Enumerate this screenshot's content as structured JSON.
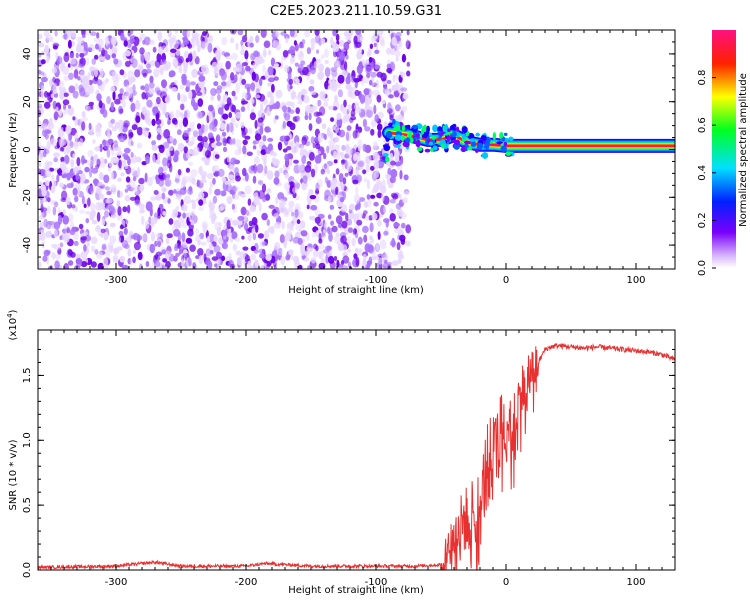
{
  "figure_title": "C2E5.2023.211.10.59.G31",
  "colors": {
    "spectro_low": "#e8d6ff",
    "spectro_mid": "#a770ff",
    "spectro_high": "#6a00e8",
    "snr_line": "#e83030"
  },
  "chart_data": [
    {
      "type": "heatmap",
      "title": "",
      "xlabel": "Height of straight line (km)",
      "ylabel": "Frequency (Hz)",
      "xlim": [
        -360,
        130
      ],
      "ylim": [
        -50,
        50
      ],
      "xticks": [
        -300,
        -200,
        -100,
        0,
        100
      ],
      "yticks": [
        -40,
        -20,
        0,
        20,
        40
      ],
      "colorbar": {
        "label": "Normalized spectral amplitude",
        "range": [
          0,
          1
        ],
        "ticks": [
          "0.0",
          "0.2",
          "0.4",
          "0.6",
          "0.8"
        ],
        "colormap": "rainbow (purple-blue-cyan-green-yellow-red-magenta)"
      },
      "features": [
        {
          "desc": "noise",
          "x_range": [
            -360,
            -75
          ],
          "y_range": [
            -50,
            50
          ],
          "amplitude": 0.05
        },
        {
          "desc": "signal trace",
          "points": [
            [
              -90,
              7
            ],
            [
              -75,
              6
            ],
            [
              -60,
              4
            ],
            [
              -50,
              4
            ],
            [
              -40,
              6
            ],
            [
              -30,
              3
            ],
            [
              -20,
              2
            ],
            [
              -10,
              2
            ],
            [
              0,
              1.5
            ],
            [
              50,
              1.5
            ],
            [
              130,
              1.5
            ]
          ],
          "amplitude": 0.9
        }
      ]
    },
    {
      "type": "line",
      "title": "",
      "xlabel": "Height of straight line (km)",
      "ylabel": "SNR (10 * v/v)",
      "y_multiplier": "(x10^4)",
      "xlim": [
        -360,
        130
      ],
      "ylim": [
        0,
        1.85
      ],
      "xticks": [
        -300,
        -200,
        -100,
        0,
        100
      ],
      "yticks": [
        "0.0",
        "0.5",
        "1.0",
        "1.5"
      ],
      "series": [
        {
          "x": [
            -360,
            -300,
            -270,
            -250,
            -200,
            -185,
            -150,
            -100,
            -70,
            -50,
            -45,
            -40,
            -35,
            -30,
            -25,
            -20,
            -15,
            -10,
            -5,
            0,
            5,
            10,
            15,
            20,
            25,
            30,
            35,
            40,
            50,
            60,
            70,
            80,
            90,
            100,
            110,
            120,
            130
          ],
          "y": [
            0.02,
            0.03,
            0.06,
            0.03,
            0.03,
            0.05,
            0.03,
            0.03,
            0.03,
            0.04,
            0.15,
            0.25,
            0.35,
            0.4,
            0.5,
            0.45,
            0.8,
            0.85,
            1.05,
            1.15,
            1.2,
            1.3,
            1.45,
            1.55,
            1.6,
            1.7,
            1.72,
            1.73,
            1.72,
            1.71,
            1.72,
            1.71,
            1.7,
            1.69,
            1.68,
            1.66,
            1.62
          ]
        }
      ]
    }
  ]
}
